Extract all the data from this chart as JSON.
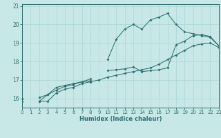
{
  "x_values": [
    0,
    1,
    2,
    3,
    4,
    5,
    6,
    7,
    8,
    9,
    10,
    11,
    12,
    13,
    14,
    15,
    16,
    17,
    18,
    19,
    20,
    21,
    22,
    23
  ],
  "line_main_y": [
    15.85,
    null,
    16.05,
    16.2,
    16.6,
    16.7,
    16.8,
    16.9,
    16.95,
    null,
    18.1,
    19.2,
    19.75,
    20.0,
    19.75,
    20.25,
    20.4,
    20.6,
    20.0,
    19.6,
    19.5,
    19.4,
    19.3,
    18.85
  ],
  "line_mid_y": [
    16.0,
    null,
    15.85,
    16.2,
    16.45,
    16.65,
    16.75,
    16.9,
    17.05,
    null,
    17.5,
    17.55,
    17.6,
    17.7,
    17.45,
    17.5,
    17.55,
    17.65,
    18.9,
    19.1,
    19.4,
    19.45,
    19.35,
    18.85
  ],
  "line_low_y": [
    16.0,
    null,
    15.85,
    15.85,
    16.3,
    16.5,
    16.6,
    16.8,
    16.9,
    17.0,
    17.15,
    17.25,
    17.35,
    17.45,
    17.55,
    17.65,
    17.85,
    18.1,
    18.35,
    18.6,
    18.85,
    18.95,
    19.0,
    18.75
  ],
  "bg_color": "#c8e8e8",
  "line_color": "#2d7070",
  "grid_color": "#aad4d4",
  "xlabel": "Humidex (Indice chaleur)",
  "xlim": [
    0,
    23
  ],
  "ylim": [
    15.5,
    21.1
  ],
  "yticks": [
    16,
    17,
    18,
    19,
    20,
    21
  ],
  "xticks": [
    0,
    1,
    2,
    3,
    4,
    5,
    6,
    7,
    8,
    9,
    10,
    11,
    12,
    13,
    14,
    15,
    16,
    17,
    18,
    19,
    20,
    21,
    22,
    23
  ]
}
